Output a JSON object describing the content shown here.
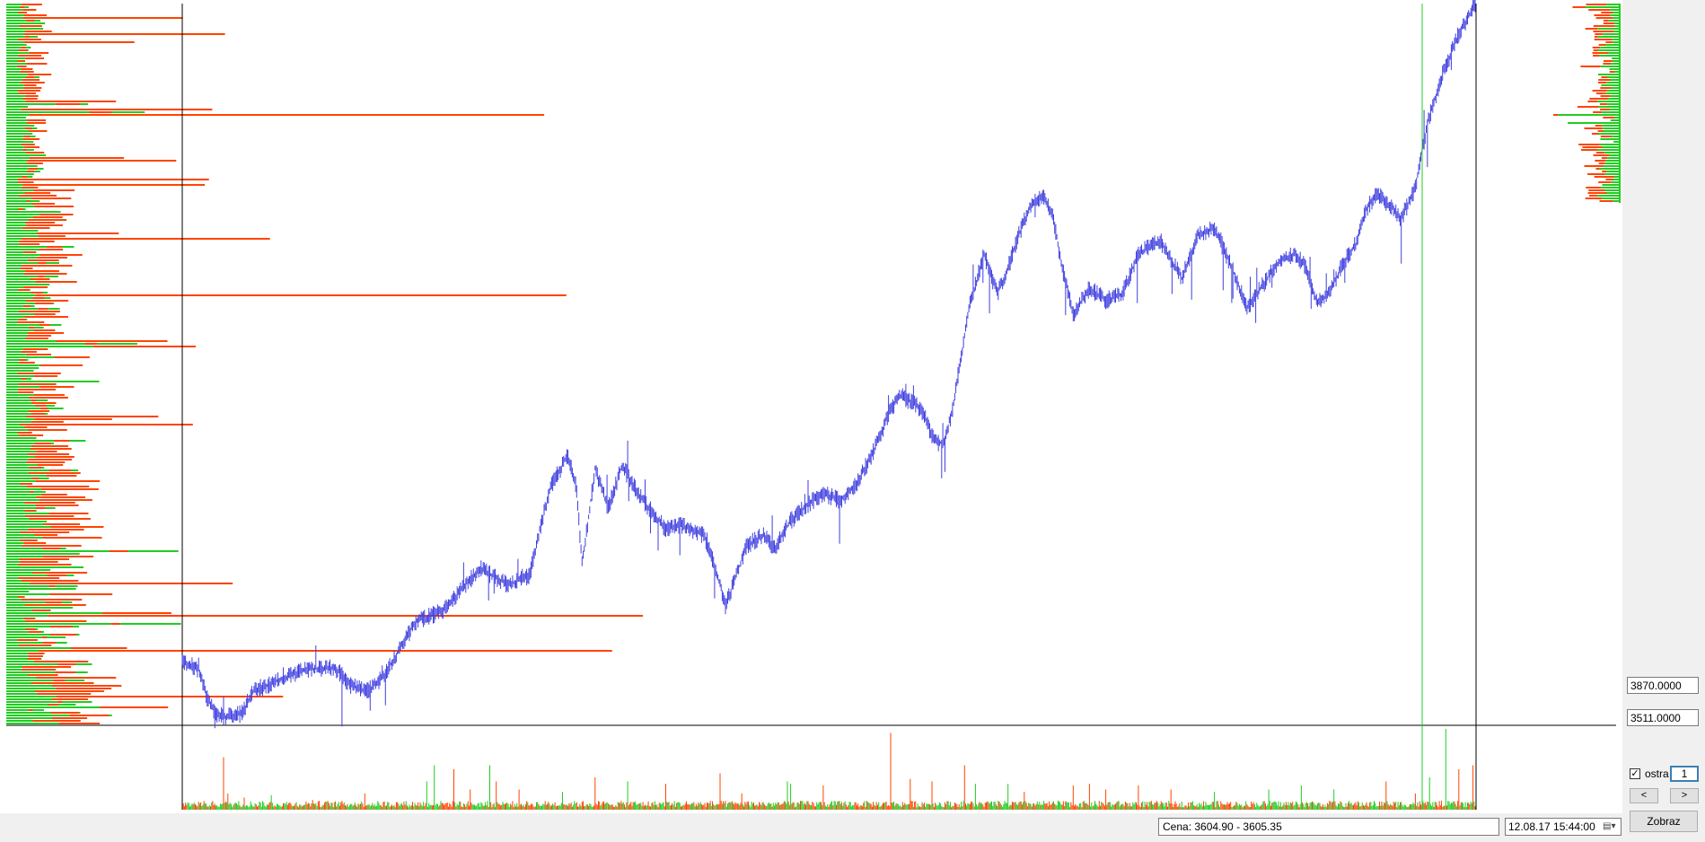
{
  "window": {
    "price_range_text": "Cena: 3604.90 - 3605.35",
    "datetime_value": "12.08.17 15:44:00",
    "scale_max": "3870.0000",
    "scale_min": "3511.0000",
    "sharp_checkbox_label": "ostra",
    "sharp_checked": true,
    "sharp_value": "1",
    "prev_label": "<",
    "next_label": ">",
    "show_button": "Zobraz"
  },
  "icons": {
    "calendar": "calendar-dropdown-icon",
    "check": "checkbox-check-icon"
  },
  "colors": {
    "price": "#3f3fe0",
    "buy": "#22cc22",
    "sell": "#ff4400",
    "cursor": "#22cc22",
    "frame": "#000000"
  },
  "chart_data": {
    "type": "line",
    "title": "",
    "xlabel": "",
    "ylabel": "",
    "ylim": [
      3511,
      3870
    ],
    "price_waypoints": [
      [
        0,
        3542
      ],
      [
        15,
        3538
      ],
      [
        22,
        3525
      ],
      [
        30,
        3516
      ],
      [
        40,
        3514
      ],
      [
        55,
        3516
      ],
      [
        65,
        3527
      ],
      [
        90,
        3533
      ],
      [
        115,
        3538
      ],
      [
        140,
        3539
      ],
      [
        155,
        3530
      ],
      [
        170,
        3527
      ],
      [
        185,
        3534
      ],
      [
        200,
        3548
      ],
      [
        215,
        3562
      ],
      [
        240,
        3567
      ],
      [
        260,
        3580
      ],
      [
        275,
        3588
      ],
      [
        300,
        3580
      ],
      [
        320,
        3585
      ],
      [
        330,
        3610
      ],
      [
        340,
        3630
      ],
      [
        355,
        3645
      ],
      [
        363,
        3628
      ],
      [
        368,
        3590
      ],
      [
        380,
        3638
      ],
      [
        392,
        3618
      ],
      [
        405,
        3640
      ],
      [
        420,
        3625
      ],
      [
        430,
        3618
      ],
      [
        445,
        3608
      ],
      [
        460,
        3610
      ],
      [
        480,
        3605
      ],
      [
        490,
        3590
      ],
      [
        500,
        3570
      ],
      [
        510,
        3585
      ],
      [
        520,
        3600
      ],
      [
        535,
        3605
      ],
      [
        545,
        3598
      ],
      [
        560,
        3612
      ],
      [
        575,
        3620
      ],
      [
        590,
        3626
      ],
      [
        605,
        3622
      ],
      [
        620,
        3630
      ],
      [
        635,
        3645
      ],
      [
        650,
        3665
      ],
      [
        660,
        3675
      ],
      [
        680,
        3668
      ],
      [
        690,
        3655
      ],
      [
        700,
        3650
      ],
      [
        708,
        3665
      ],
      [
        715,
        3688
      ],
      [
        725,
        3720
      ],
      [
        738,
        3745
      ],
      [
        750,
        3725
      ],
      [
        760,
        3738
      ],
      [
        770,
        3755
      ],
      [
        780,
        3768
      ],
      [
        792,
        3775
      ],
      [
        802,
        3762
      ],
      [
        810,
        3738
      ],
      [
        820,
        3715
      ],
      [
        835,
        3728
      ],
      [
        850,
        3722
      ],
      [
        865,
        3725
      ],
      [
        880,
        3745
      ],
      [
        900,
        3752
      ],
      [
        920,
        3733
      ],
      [
        935,
        3755
      ],
      [
        950,
        3758
      ],
      [
        965,
        3740
      ],
      [
        980,
        3718
      ],
      [
        995,
        3730
      ],
      [
        1010,
        3742
      ],
      [
        1025,
        3745
      ],
      [
        1035,
        3738
      ],
      [
        1045,
        3720
      ],
      [
        1058,
        3728
      ],
      [
        1068,
        3740
      ],
      [
        1080,
        3750
      ],
      [
        1090,
        3768
      ],
      [
        1100,
        3775
      ],
      [
        1110,
        3770
      ],
      [
        1122,
        3763
      ],
      [
        1135,
        3778
      ],
      [
        1146,
        3810
      ],
      [
        1160,
        3835
      ],
      [
        1175,
        3855
      ],
      [
        1190,
        3870
      ]
    ],
    "volume_spikes": [
      [
        38,
        0.65
      ],
      [
        42,
        0.2
      ],
      [
        57,
        0.15
      ],
      [
        82,
        0.18
      ],
      [
        120,
        0.12
      ],
      [
        168,
        0.2
      ],
      [
        225,
        0.35
      ],
      [
        232,
        0.55
      ],
      [
        250,
        0.5
      ],
      [
        265,
        0.25
      ],
      [
        283,
        0.55
      ],
      [
        289,
        0.35
      ],
      [
        310,
        0.25
      ],
      [
        350,
        0.22
      ],
      [
        380,
        0.4
      ],
      [
        410,
        0.35
      ],
      [
        445,
        0.32
      ],
      [
        495,
        0.45
      ],
      [
        515,
        0.2
      ],
      [
        557,
        0.35
      ],
      [
        560,
        0.32
      ],
      [
        590,
        0.3
      ],
      [
        652,
        0.95
      ],
      [
        670,
        0.38
      ],
      [
        690,
        0.35
      ],
      [
        720,
        0.55
      ],
      [
        730,
        0.32
      ],
      [
        760,
        0.32
      ],
      [
        775,
        0.22
      ],
      [
        820,
        0.3
      ],
      [
        835,
        0.32
      ],
      [
        850,
        0.25
      ],
      [
        880,
        0.3
      ],
      [
        910,
        0.25
      ],
      [
        950,
        0.22
      ],
      [
        1000,
        0.25
      ],
      [
        1030,
        0.3
      ],
      [
        1060,
        0.25
      ],
      [
        1108,
        0.35
      ],
      [
        1135,
        0.2
      ],
      [
        1148,
        0.4
      ],
      [
        1163,
        1.0
      ],
      [
        1175,
        0.5
      ],
      [
        1188,
        0.55
      ]
    ]
  }
}
